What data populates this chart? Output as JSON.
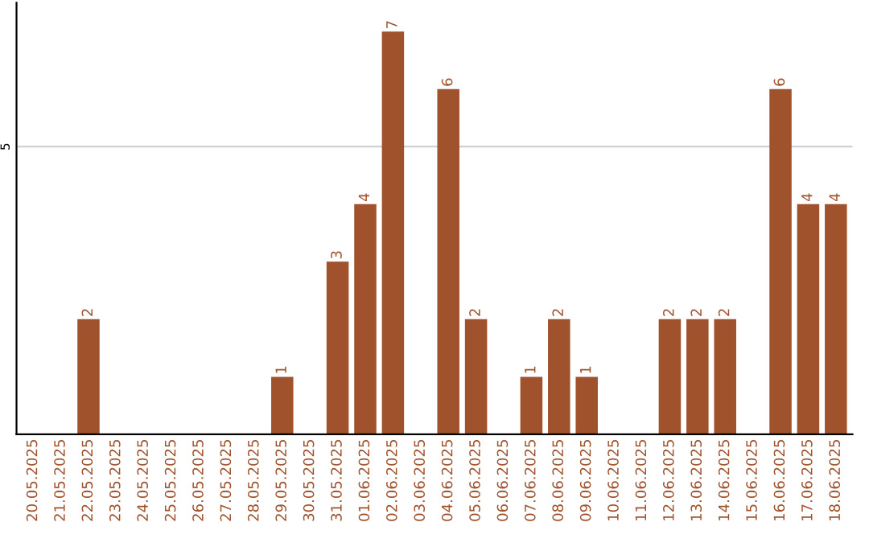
{
  "chart_data": {
    "type": "bar",
    "categories": [
      "20.05.2025",
      "21.05.2025",
      "22.05.2025",
      "23.05.2025",
      "24.05.2025",
      "25.05.2025",
      "26.05.2025",
      "27.05.2025",
      "28.05.2025",
      "29.05.2025",
      "30.05.2025",
      "31.05.2025",
      "01.06.2025",
      "02.06.2025",
      "03.06.2025",
      "04.06.2025",
      "05.06.2025",
      "06.06.2025",
      "07.06.2025",
      "08.06.2025",
      "09.06.2025",
      "10.06.2025",
      "11.06.2025",
      "12.06.2025",
      "13.06.2025",
      "14.06.2025",
      "15.06.2025",
      "16.06.2025",
      "17.06.2025",
      "18.06.2025"
    ],
    "values": [
      0,
      0,
      2,
      0,
      0,
      0,
      0,
      0,
      0,
      1,
      0,
      3,
      4,
      7,
      0,
      6,
      2,
      0,
      1,
      2,
      1,
      0,
      0,
      2,
      2,
      2,
      0,
      6,
      4,
      4
    ],
    "value_labels": [
      null,
      null,
      "2",
      null,
      null,
      null,
      null,
      null,
      null,
      "1",
      null,
      "3",
      "4",
      "7",
      null,
      "6",
      "2",
      null,
      "1",
      "2",
      "1",
      null,
      null,
      "2",
      "2",
      "2",
      null,
      "6",
      "4",
      "4"
    ],
    "color": "#a0522d",
    "ylim": [
      0,
      7.5
    ],
    "yticks": [
      5
    ],
    "grid": "y"
  }
}
